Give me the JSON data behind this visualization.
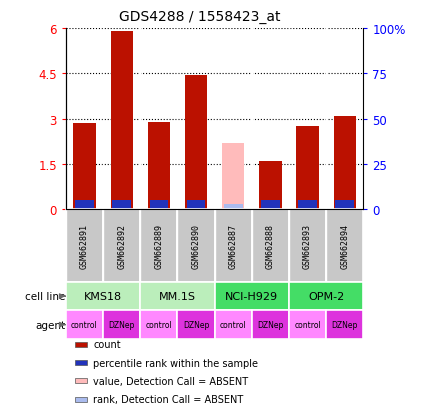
{
  "title": "GDS4288 / 1558423_at",
  "samples": [
    "GSM662891",
    "GSM662892",
    "GSM662889",
    "GSM662890",
    "GSM662887",
    "GSM662888",
    "GSM662893",
    "GSM662894"
  ],
  "count_values": [
    2.85,
    5.9,
    2.9,
    4.45,
    null,
    1.6,
    2.75,
    3.1
  ],
  "absent_value": [
    null,
    null,
    null,
    null,
    2.2,
    null,
    null,
    null
  ],
  "percentile_values": [
    0.22,
    0.28,
    0.15,
    0.22,
    null,
    0.12,
    0.18,
    0.22
  ],
  "absent_percentile": [
    null,
    null,
    null,
    null,
    0.08,
    null,
    null,
    null
  ],
  "cell_lines": [
    {
      "label": "KMS18",
      "start": 0,
      "end": 2
    },
    {
      "label": "MM.1S",
      "start": 2,
      "end": 4
    },
    {
      "label": "NCI-H929",
      "start": 4,
      "end": 6
    },
    {
      "label": "OPM-2",
      "start": 6,
      "end": 8
    }
  ],
  "cell_line_colors": [
    "#BBEEBB",
    "#BBEEBB",
    "#44DD66",
    "#44DD66"
  ],
  "agents": [
    "control",
    "DZNep",
    "control",
    "DZNep",
    "control",
    "DZNep",
    "control",
    "DZNep"
  ],
  "agent_color_control": "#FF88FF",
  "agent_color_dznep": "#DD33DD",
  "ylim": [
    0,
    6
  ],
  "yticks": [
    0,
    1.5,
    3.0,
    4.5,
    6.0
  ],
  "ytick_labels": [
    "0",
    "1.5",
    "3",
    "4.5",
    "6"
  ],
  "y2ticks": [
    0,
    25,
    50,
    75,
    100
  ],
  "y2tick_labels": [
    "0",
    "25",
    "50",
    "75",
    "100%"
  ],
  "bar_color_red": "#BB1100",
  "bar_color_blue": "#2233BB",
  "bar_color_pink": "#FFBBBB",
  "bar_color_lightblue": "#AABBEE",
  "bar_width": 0.6,
  "blue_bar_width": 0.5,
  "blue_bar_height": 0.32,
  "absent_blue_bar_height": 0.18,
  "sample_bg_color": "#C8C8C8",
  "legend_items": [
    {
      "color": "#BB1100",
      "label": "count"
    },
    {
      "color": "#2233BB",
      "label": "percentile rank within the sample"
    },
    {
      "color": "#FFBBBB",
      "label": "value, Detection Call = ABSENT"
    },
    {
      "color": "#AABBEE",
      "label": "rank, Detection Call = ABSENT"
    }
  ]
}
